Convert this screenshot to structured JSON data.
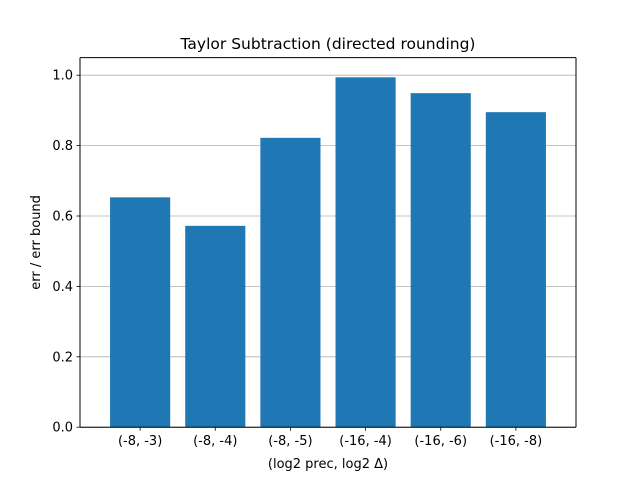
{
  "chart_data": {
    "type": "bar",
    "title": "Taylor Subtraction (directed rounding)",
    "xlabel": "(log2 prec, log2 Δ)",
    "ylabel": "err / err bound",
    "categories": [
      "(-8, -3)",
      "(-8, -4)",
      "(-8, -5)",
      "(-16, -4)",
      "(-16, -6)",
      "(-16, -8)"
    ],
    "values": [
      0.653,
      0.572,
      0.822,
      0.994,
      0.949,
      0.895
    ],
    "ylim": [
      0,
      1.05
    ],
    "yticks": [
      0.0,
      0.2,
      0.4,
      0.6,
      0.8,
      1.0
    ],
    "ytick_labels": [
      "0.0",
      "0.2",
      "0.4",
      "0.6",
      "0.8",
      "1.0"
    ],
    "grid": {
      "y": true,
      "x": false
    },
    "colors": {
      "bar": "#1f77b4",
      "grid": "#b0b0b0",
      "axis": "#000000"
    }
  }
}
